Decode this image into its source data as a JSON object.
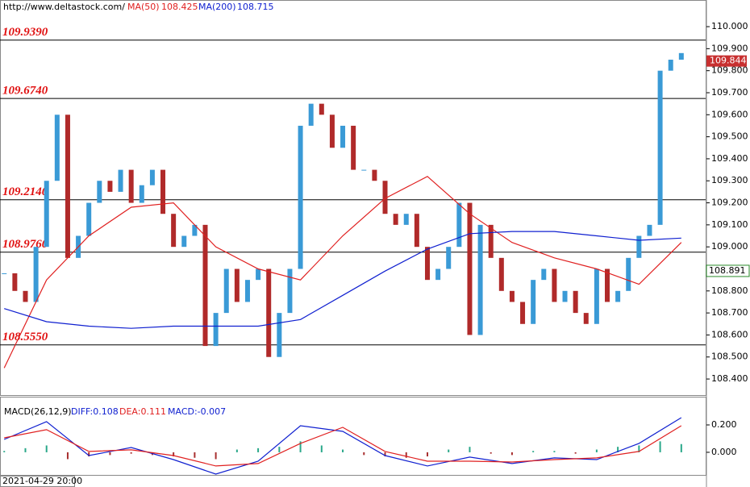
{
  "chart_data": [
    {
      "type": "candlestick",
      "source": "http://www.deltastock.com/",
      "indicators": [
        {
          "name": "MA(50)",
          "value": 108.425,
          "color": "#e02020"
        },
        {
          "name": "MA(200)",
          "value": 108.715,
          "color": "#1020d0"
        }
      ],
      "close": [
        108.88,
        108.8,
        108.75,
        109.0,
        109.3,
        109.6,
        108.95,
        109.05,
        109.2,
        109.3,
        109.25,
        109.35,
        109.2,
        109.28,
        109.35,
        109.15,
        109.0,
        109.05,
        109.1,
        108.55,
        108.7,
        108.9,
        108.75,
        108.85,
        108.9,
        108.5,
        108.7,
        108.9,
        109.55,
        109.65,
        109.6,
        109.45,
        109.55,
        109.35,
        109.35,
        109.3,
        109.15,
        109.1,
        109.15,
        109.0,
        108.85,
        108.9,
        109.0,
        109.2,
        108.6,
        109.1,
        108.95,
        108.8,
        108.75,
        108.65,
        108.85,
        108.9,
        108.75,
        108.8,
        108.7,
        108.65,
        108.9,
        108.75,
        108.8,
        108.95,
        109.05,
        109.1,
        109.8,
        109.85,
        109.88
      ],
      "up_color": "#3a9ad6",
      "down_color": "#b02a2a",
      "series": [
        {
          "name": "MA(50)",
          "color": "#e02020",
          "x": [
            0,
            4,
            8,
            12,
            16,
            20,
            24,
            28,
            32,
            36,
            40,
            44,
            48,
            52,
            56,
            60,
            64
          ],
          "values": [
            108.45,
            108.85,
            109.05,
            109.18,
            109.2,
            109.0,
            108.9,
            108.85,
            109.05,
            109.22,
            109.32,
            109.15,
            109.02,
            108.95,
            108.9,
            108.83,
            109.02
          ]
        },
        {
          "name": "MA(200)",
          "color": "#1020d0",
          "x": [
            0,
            4,
            8,
            12,
            16,
            20,
            24,
            28,
            32,
            36,
            40,
            44,
            48,
            52,
            56,
            60,
            64
          ],
          "values": [
            108.72,
            108.66,
            108.64,
            108.63,
            108.64,
            108.64,
            108.64,
            108.67,
            108.78,
            108.89,
            108.99,
            109.06,
            109.07,
            109.07,
            109.05,
            109.03,
            109.04
          ]
        }
      ],
      "levels": [
        {
          "value": 109.939,
          "label": "109.9390"
        },
        {
          "value": 109.674,
          "label": "109.6740"
        },
        {
          "value": 109.214,
          "label": "109.2140"
        },
        {
          "value": 108.976,
          "label": "108.9760"
        },
        {
          "value": 108.555,
          "label": "108.5550"
        }
      ],
      "last_price": 109.844,
      "marker_price": 108.891,
      "xlim": [
        -0.4,
        66.3
      ],
      "ylim": [
        108.327,
        110.121
      ],
      "yticks": [
        {
          "value": 110,
          "label": "110.000"
        },
        {
          "value": 109.9,
          "label": "109.900"
        },
        {
          "value": 109.8,
          "label": "109.800"
        },
        {
          "value": 109.7,
          "label": "109.700"
        },
        {
          "value": 109.6,
          "label": "109.600"
        },
        {
          "value": 109.5,
          "label": "109.500"
        },
        {
          "value": 109.4,
          "label": "109.400"
        },
        {
          "value": 109.3,
          "label": "109.300"
        },
        {
          "value": 109.2,
          "label": "109.200"
        },
        {
          "value": 109.1,
          "label": "109.100"
        },
        {
          "value": 109,
          "label": "109.000"
        },
        {
          "value": 108.9,
          "label": "108.900"
        },
        {
          "value": 108.8,
          "label": "108.800"
        },
        {
          "value": 108.7,
          "label": "108.700"
        },
        {
          "value": 108.6,
          "label": "108.600"
        },
        {
          "value": 108.5,
          "label": "108.500"
        },
        {
          "value": 108.4,
          "label": "108.400"
        }
      ]
    },
    {
      "type": "macd",
      "title": "MACD(26,12,9)",
      "readouts": [
        {
          "text": "DIFF:0.108",
          "color": "#1020d0"
        },
        {
          "text": "DEA:0.111",
          "color": "#e02020"
        },
        {
          "text": "MACD:-0.007",
          "color": "#1020d0"
        }
      ],
      "series": [
        {
          "name": "DIFF",
          "color": "#1020d0",
          "x": [
            0,
            4,
            8,
            12,
            16,
            20,
            24,
            28,
            32,
            36,
            40,
            44,
            48,
            52,
            56,
            60,
            64
          ],
          "values": [
            0.094,
            0.224,
            -0.024,
            0.035,
            -0.053,
            -0.159,
            -0.065,
            0.194,
            0.153,
            -0.024,
            -0.1,
            -0.035,
            -0.082,
            -0.041,
            -0.053,
            0.065,
            0.253
          ]
        },
        {
          "name": "DEA",
          "color": "#e02020",
          "x": [
            0,
            4,
            8,
            12,
            16,
            20,
            24,
            28,
            32,
            36,
            40,
            44,
            48,
            52,
            56,
            60,
            64
          ],
          "values": [
            0.106,
            0.165,
            0.006,
            0.018,
            -0.024,
            -0.1,
            -0.082,
            0.065,
            0.182,
            0.006,
            -0.065,
            -0.065,
            -0.071,
            -0.053,
            -0.041,
            0.006,
            0.194
          ]
        }
      ],
      "histogram": {
        "x": [
          0,
          2,
          4,
          6,
          8,
          10,
          12,
          14,
          16,
          18,
          20,
          22,
          24,
          26,
          28,
          30,
          32,
          34,
          36,
          38,
          40,
          42,
          44,
          46,
          48,
          50,
          52,
          54,
          56,
          58,
          60,
          62,
          64
        ],
        "values": [
          0.01,
          0.03,
          0.05,
          -0.05,
          -0.03,
          -0.02,
          -0.01,
          -0.02,
          -0.03,
          -0.04,
          -0.05,
          0.02,
          0.03,
          0.04,
          0.08,
          0.05,
          0.02,
          -0.02,
          -0.03,
          -0.04,
          -0.03,
          0.02,
          0.04,
          -0.01,
          -0.02,
          0.01,
          0.01,
          -0.01,
          0.02,
          0.04,
          0.05,
          0.08,
          0.06
        ],
        "positive_color": "#2aa88a",
        "negative_color": "#a83030"
      },
      "date": "2021-04-29 20:00",
      "xlim": [
        -0.4,
        66.3
      ],
      "ylim": [
        -0.171,
        0.406
      ],
      "yticks": [
        {
          "value": 0.2,
          "label": "0.200"
        },
        {
          "value": 0,
          "label": "0.000"
        }
      ]
    }
  ]
}
